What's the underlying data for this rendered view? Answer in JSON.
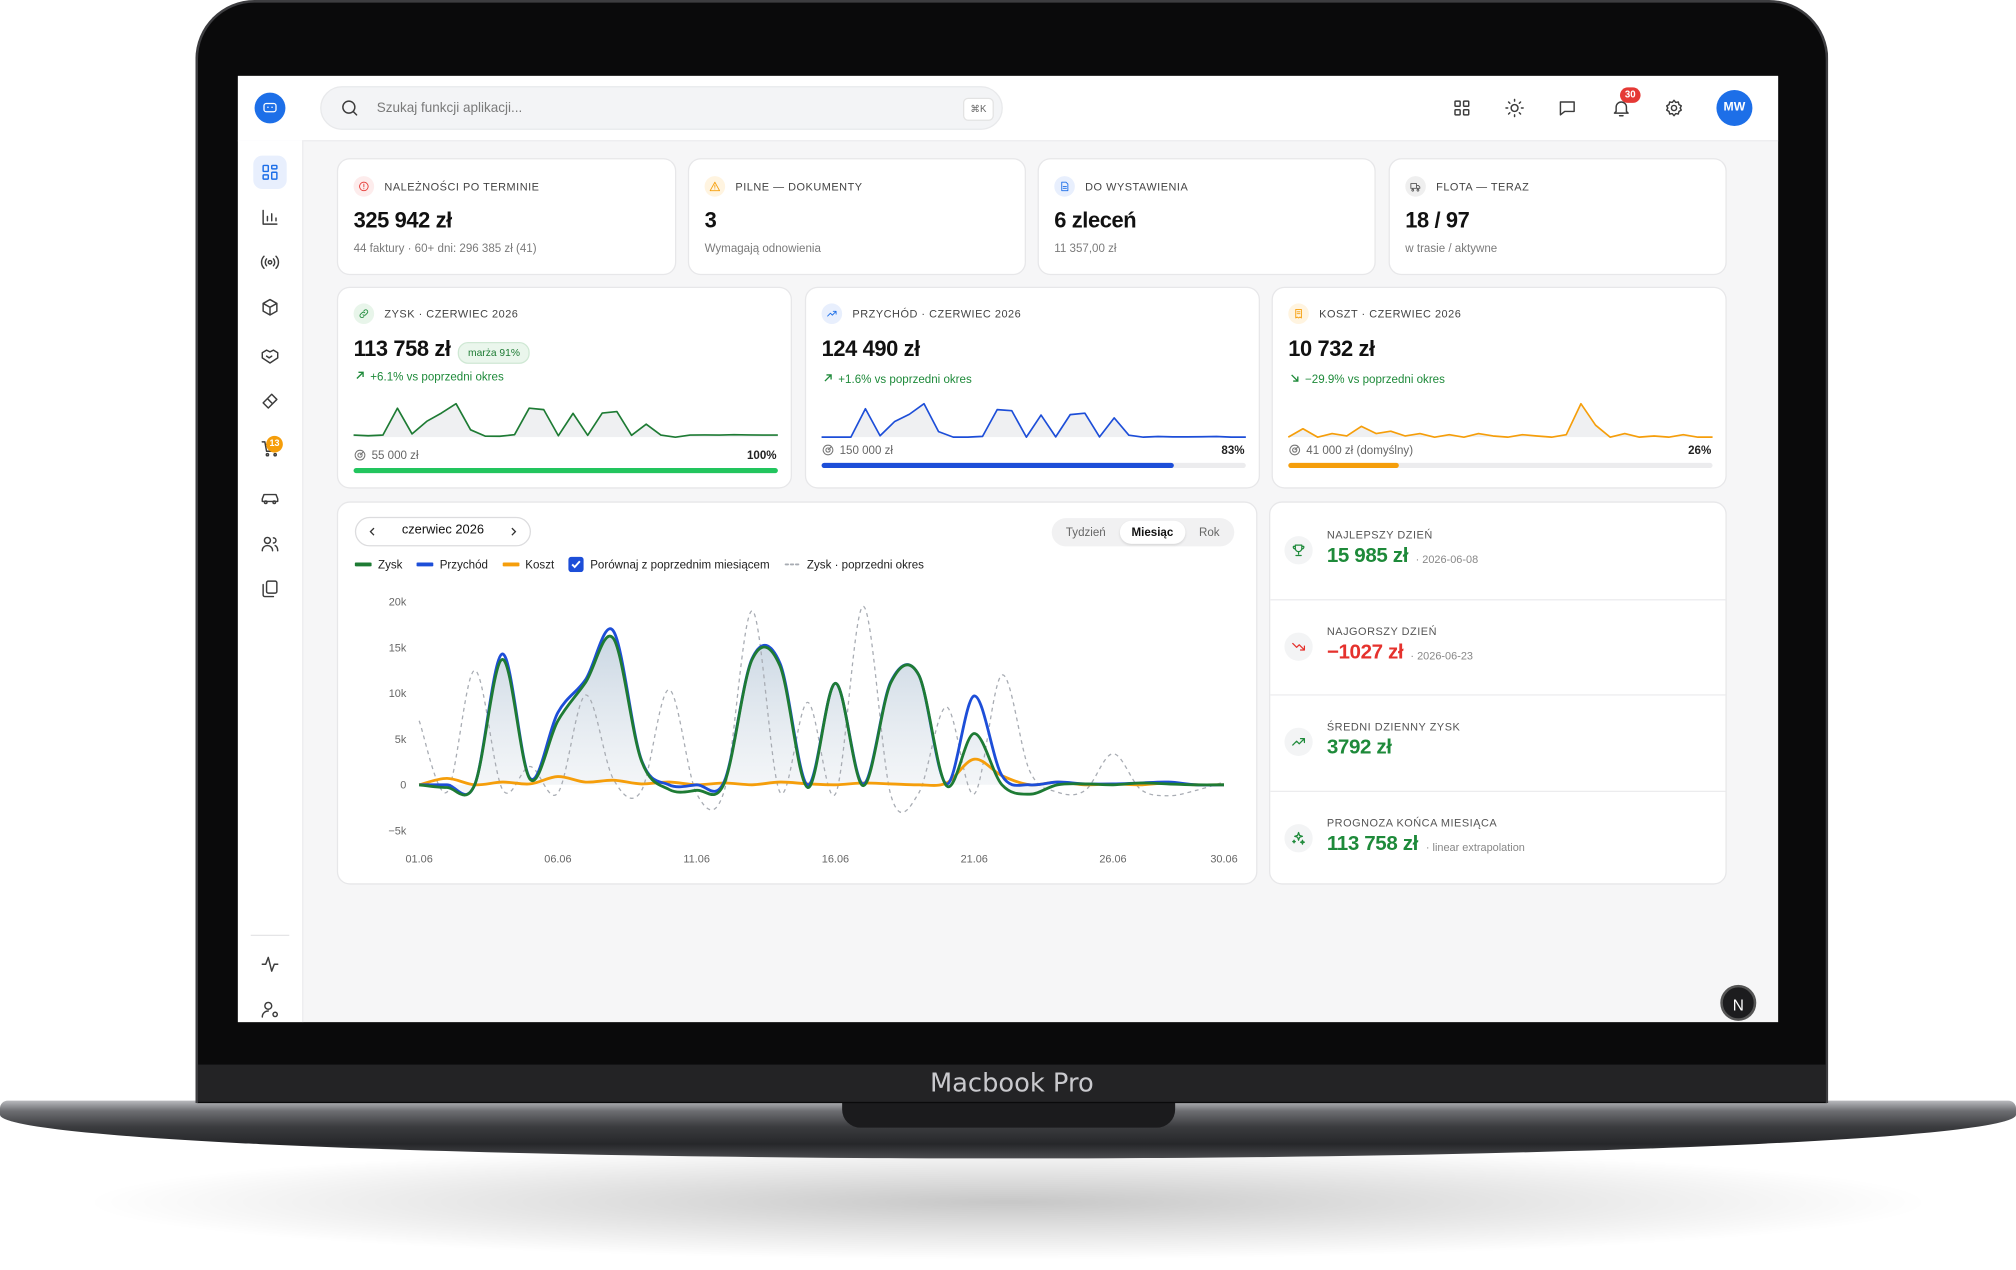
{
  "device_label": "Macbook Pro",
  "topbar": {
    "search_placeholder": "Szukaj funkcji aplikacji...",
    "shortcut": "⌘K",
    "notifications": 30,
    "avatar": "MW"
  },
  "sidebar": {
    "cart_badge": 13
  },
  "dev_indicator": "N",
  "kpis": [
    {
      "label": "NALEŻNOŚCI PO TERMINIE",
      "value": "325 942 zł",
      "sub": "44 faktury · 60+ dni: 296 385 zł (41)"
    },
    {
      "label": "PILNE — DOKUMENTY",
      "value": "3",
      "sub": "Wymagają odnowienia"
    },
    {
      "label": "DO WYSTAWIENIA",
      "value": "6 zleceń",
      "sub": "11 357,00 zł"
    },
    {
      "label": "FLOTA — TERAZ",
      "value": "18 / 97",
      "sub": "w trasie / aktywne"
    }
  ],
  "metrics": [
    {
      "label": "ZYSK · CZERWIEC 2026",
      "value": "113 758 zł",
      "badge": "marża 91%",
      "change": "+6.1% vs poprzedni okres",
      "trend": "up",
      "target": "55 000 zł",
      "progress": {
        "value": 100,
        "label": "100%"
      },
      "bar_color": "#22c55e"
    },
    {
      "label": "PRZYCHÓD · CZERWIEC 2026",
      "value": "124 490 zł",
      "change": "+1.6% vs poprzedni okres",
      "trend": "up",
      "target": "150 000 zł",
      "progress": {
        "value": 83,
        "label": "83%"
      },
      "bar_color": "#1d4ed8"
    },
    {
      "label": "KOSZT · CZERWIEC 2026",
      "value": "10 732 zł",
      "change": "−29.9% vs poprzedni okres",
      "trend": "down",
      "target": "41 000 zł (domyślny)",
      "progress": {
        "value": 26,
        "label": "26%"
      },
      "bar_color": "#f59e0b"
    }
  ],
  "chart_data": {
    "type": "line",
    "period": "czerwiec 2026",
    "tabs": [
      "Tydzień",
      "Miesiąc",
      "Rok"
    ],
    "active_tab": 1,
    "compare": {
      "label": "Porównaj z poprzednim miesiącem",
      "checked": true
    },
    "categories": [
      "01.06",
      null,
      null,
      null,
      null,
      "06.06",
      null,
      null,
      null,
      null,
      "11.06",
      null,
      null,
      null,
      null,
      "16.06",
      null,
      null,
      null,
      null,
      "21.06",
      null,
      null,
      null,
      null,
      "26.06",
      null,
      null,
      null,
      "30.06"
    ],
    "series": [
      {
        "name": "Zysk",
        "color": "#1e7b34",
        "area": true,
        "values": [
          0,
          -300,
          0,
          13700,
          600,
          7000,
          11200,
          15985,
          2700,
          -500,
          -600,
          200,
          13700,
          13000,
          -300,
          11100,
          -100,
          11200,
          12000,
          -100,
          5600,
          0,
          -1027,
          0,
          100,
          0,
          200,
          100,
          0,
          0
        ]
      },
      {
        "name": "Przychód",
        "color": "#1d4ed8",
        "values": [
          0,
          0,
          0,
          14300,
          700,
          7900,
          11500,
          16800,
          2800,
          0,
          0,
          400,
          13800,
          13300,
          0,
          11100,
          100,
          11300,
          12000,
          100,
          9700,
          1000,
          0,
          300,
          100,
          100,
          200,
          300,
          0,
          0
        ]
      },
      {
        "name": "Koszt",
        "color": "#f59e0b",
        "values": [
          0,
          700,
          0,
          300,
          100,
          900,
          300,
          500,
          100,
          300,
          0,
          200,
          0,
          300,
          100,
          0,
          200,
          100,
          0,
          200,
          2800,
          1000,
          0,
          300,
          0,
          100,
          0,
          200,
          0,
          0
        ]
      },
      {
        "name": "Zysk · poprzedni okres",
        "color": "#a8acb3",
        "dashed": true,
        "values": [
          7000,
          -800,
          12500,
          -500,
          2000,
          -900,
          9800,
          600,
          -700,
          10400,
          -1000,
          -600,
          19000,
          -800,
          9000,
          -1000,
          19500,
          -1200,
          -900,
          8500,
          -1000,
          12000,
          1500,
          -800,
          -600,
          3400,
          -500,
          -1200,
          -600,
          300
        ]
      }
    ],
    "ylim": [
      -5000,
      20000
    ],
    "yticks": [
      {
        "value": -5000,
        "label": "−5k"
      },
      0,
      {
        "value": 5000,
        "label": "5k"
      },
      {
        "value": 10000,
        "label": "10k"
      },
      {
        "value": 15000,
        "label": "15k"
      },
      {
        "value": 20000,
        "label": "20k"
      }
    ],
    "grid": false
  },
  "stats": [
    {
      "label": "NAJLEPSZY DZIEŃ",
      "value": "15 985 zł",
      "note": "· 2026-06-08",
      "color": "#1e8a3a"
    },
    {
      "label": "NAJGORSZY DZIEŃ",
      "value": "−1027 zł",
      "note": "· 2026-06-23",
      "color": "#e5322d"
    },
    {
      "label": "ŚREDNI DZIENNY ZYSK",
      "value": "3792 zł",
      "color": "#1e8a3a"
    },
    {
      "label": "PROGNOZA KOŃCA MIESIĄCA",
      "value": "113 758 zł",
      "note": "· linear extrapolation",
      "color": "#1e8a3a"
    }
  ]
}
